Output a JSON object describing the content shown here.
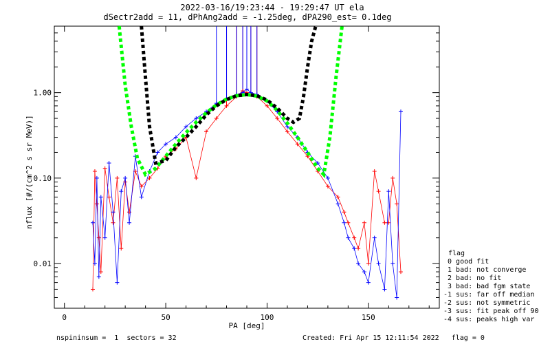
{
  "chart_data": {
    "type": "scatter",
    "title_line1": "2022-03-16/19:23:44 - 19:29:47 UT ela",
    "title_line2": "dSectr2add = 11, dPhAng2add = -1.25deg, dPA290_est=   0.1deg",
    "xlabel": "PA [deg]",
    "ylabel": "nflux [#/(cm^2 s sr MeV)]",
    "xlim": [
      -5,
      185
    ],
    "ylim": [
      0.003,
      6.0
    ],
    "yscale": "log",
    "x_ticks": [
      "0",
      "50",
      "100",
      "150"
    ],
    "x_tick_values": [
      0,
      50,
      100,
      150
    ],
    "y_ticks": [
      "1.00",
      "0.10",
      "0.01"
    ],
    "y_tick_values": [
      1.0,
      0.1,
      0.01
    ],
    "grid": false,
    "series": [
      {
        "color": "#ff0000",
        "points": [
          [
            14,
            0.005
          ],
          [
            15,
            0.12
          ],
          [
            16,
            0.05
          ],
          [
            17,
            0.02
          ],
          [
            18,
            0.008
          ],
          [
            20,
            0.13
          ],
          [
            22,
            0.06
          ],
          [
            24,
            0.03
          ],
          [
            26,
            0.1
          ],
          [
            28,
            0.015
          ],
          [
            30,
            0.09
          ],
          [
            32,
            0.04
          ],
          [
            35,
            0.12
          ],
          [
            38,
            0.08
          ],
          [
            42,
            0.1
          ],
          [
            46,
            0.13
          ],
          [
            50,
            0.18
          ],
          [
            55,
            0.22
          ],
          [
            60,
            0.3
          ],
          [
            65,
            0.1
          ],
          [
            70,
            0.35
          ],
          [
            75,
            0.5
          ],
          [
            80,
            0.7
          ],
          [
            85,
            0.9
          ],
          [
            88,
            1.05
          ],
          [
            90,
            1.0
          ],
          [
            92,
            0.95
          ],
          [
            95,
            0.9
          ],
          [
            100,
            0.7
          ],
          [
            105,
            0.5
          ],
          [
            110,
            0.35
          ],
          [
            115,
            0.25
          ],
          [
            120,
            0.18
          ],
          [
            125,
            0.12
          ],
          [
            130,
            0.08
          ],
          [
            135,
            0.06
          ],
          [
            138,
            0.04
          ],
          [
            140,
            0.03
          ],
          [
            143,
            0.02
          ],
          [
            145,
            0.015
          ],
          [
            148,
            0.03
          ],
          [
            150,
            0.01
          ],
          [
            153,
            0.12
          ],
          [
            155,
            0.07
          ],
          [
            158,
            0.03
          ],
          [
            160,
            0.03
          ],
          [
            162,
            0.1
          ],
          [
            164,
            0.05
          ],
          [
            166,
            0.008
          ]
        ]
      },
      {
        "color": "#0000ff",
        "points": [
          [
            14,
            0.03
          ],
          [
            15,
            0.01
          ],
          [
            16,
            0.1
          ],
          [
            17,
            0.007
          ],
          [
            18,
            0.06
          ],
          [
            20,
            0.02
          ],
          [
            22,
            0.15
          ],
          [
            24,
            0.04
          ],
          [
            26,
            0.006
          ],
          [
            28,
            0.07
          ],
          [
            30,
            0.1
          ],
          [
            32,
            0.03
          ],
          [
            35,
            0.18
          ],
          [
            38,
            0.06
          ],
          [
            42,
            0.12
          ],
          [
            46,
            0.2
          ],
          [
            50,
            0.25
          ],
          [
            55,
            0.3
          ],
          [
            60,
            0.4
          ],
          [
            65,
            0.5
          ],
          [
            70,
            0.6
          ],
          [
            75,
            0.75
          ],
          [
            80,
            0.85
          ],
          [
            85,
            0.95
          ],
          [
            88,
            1.0
          ],
          [
            90,
            1.1
          ],
          [
            92,
            1.0
          ],
          [
            95,
            0.95
          ],
          [
            100,
            0.8
          ],
          [
            105,
            0.6
          ],
          [
            110,
            0.4
          ],
          [
            115,
            0.3
          ],
          [
            120,
            0.2
          ],
          [
            125,
            0.15
          ],
          [
            130,
            0.1
          ],
          [
            135,
            0.05
          ],
          [
            138,
            0.03
          ],
          [
            140,
            0.02
          ],
          [
            143,
            0.015
          ],
          [
            145,
            0.01
          ],
          [
            148,
            0.008
          ],
          [
            150,
            0.006
          ],
          [
            153,
            0.02
          ],
          [
            155,
            0.01
          ],
          [
            158,
            0.005
          ],
          [
            160,
            0.07
          ],
          [
            162,
            0.01
          ],
          [
            164,
            0.004
          ],
          [
            166,
            0.6
          ]
        ]
      }
    ],
    "curves": [
      {
        "color": "#00ff00",
        "x": [
          27,
          30,
          33,
          36,
          40,
          45,
          50,
          55,
          60,
          65,
          70,
          75,
          80,
          85,
          90,
          95,
          100,
          105,
          110,
          115,
          120,
          125,
          128,
          131,
          134,
          137
        ],
        "values": [
          6.0,
          1.2,
          0.4,
          0.17,
          0.11,
          0.13,
          0.18,
          0.25,
          0.34,
          0.45,
          0.58,
          0.72,
          0.84,
          0.92,
          0.95,
          0.91,
          0.8,
          0.62,
          0.44,
          0.3,
          0.2,
          0.13,
          0.11,
          0.3,
          1.5,
          6.0
        ]
      },
      {
        "color": "#000000",
        "x": [
          38,
          40,
          42,
          45,
          50,
          55,
          60,
          65,
          70,
          75,
          80,
          85,
          90,
          95,
          100,
          105,
          110,
          113,
          116,
          118,
          120,
          122,
          124
        ],
        "values": [
          6.0,
          1.5,
          0.4,
          0.15,
          0.16,
          0.23,
          0.3,
          0.4,
          0.55,
          0.7,
          0.83,
          0.92,
          0.95,
          0.92,
          0.82,
          0.66,
          0.5,
          0.45,
          0.5,
          0.9,
          2.0,
          4.0,
          6.0
        ]
      }
    ],
    "legend": {
      "position": "right",
      "title": "flag",
      "entries": [
        " 0 good fit",
        " 1 bad: not converge",
        " 2 bad: no fit",
        " 3 bad: bad fgm state",
        "-1 sus: far off median",
        "-2 sus: not symmetric",
        "-3 sus: fit peak off 90",
        "-4 sus: peaks high var"
      ]
    },
    "footer": {
      "left": "nspininsum =  1  sectors = 32",
      "right": "Created: Fri Apr 15 12:11:54 2022   flag = 0"
    }
  }
}
